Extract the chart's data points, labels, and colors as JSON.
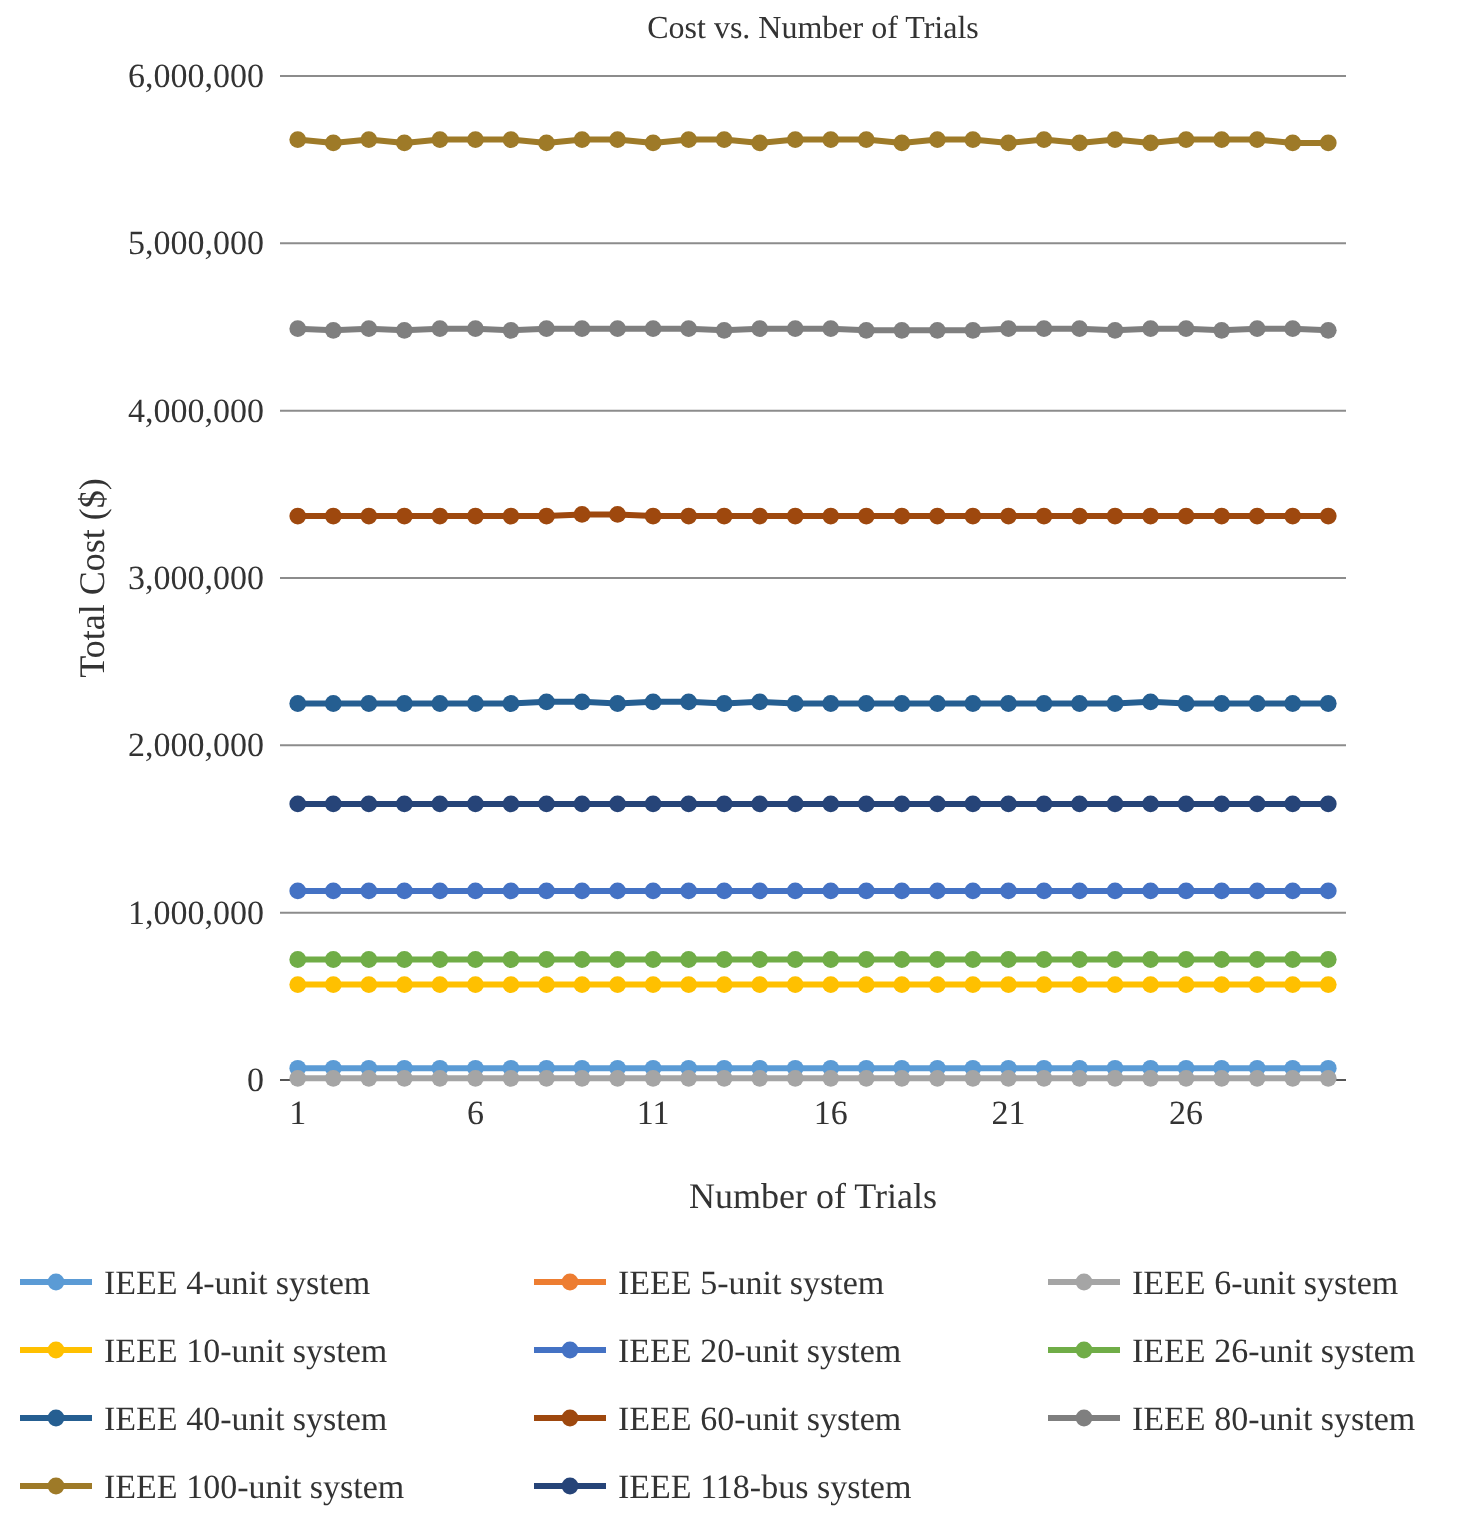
{
  "chart_data": {
    "type": "line",
    "title": "Cost vs. Number of Trials",
    "xlabel": "Number of Trials",
    "ylabel": "Total Cost ($)",
    "x": [
      1,
      2,
      3,
      4,
      5,
      6,
      7,
      8,
      9,
      10,
      11,
      12,
      13,
      14,
      15,
      16,
      17,
      18,
      19,
      20,
      21,
      22,
      23,
      24,
      25,
      26,
      27,
      28,
      29,
      30
    ],
    "xlim": [
      0.5,
      30.5
    ],
    "xticks": [
      1,
      6,
      11,
      16,
      21,
      26
    ],
    "ylim": [
      0,
      6000000
    ],
    "yticks": [
      {
        "value": 0,
        "label": "0"
      },
      {
        "value": 1000000,
        "label": "1,000,000"
      },
      {
        "value": 2000000,
        "label": "2,000,000"
      },
      {
        "value": 3000000,
        "label": "3,000,000"
      },
      {
        "value": 4000000,
        "label": "4,000,000"
      },
      {
        "value": 5000000,
        "label": "5,000,000"
      },
      {
        "value": 6000000,
        "label": "6,000,000"
      }
    ],
    "grid": "y",
    "legend": "bottom",
    "marker": "circle",
    "line_style": "solid",
    "series": [
      {
        "name": "IEEE 4-unit system",
        "color": "#5b9bd5",
        "values": [
          70000,
          70000,
          70000,
          70000,
          70000,
          70000,
          70000,
          70000,
          70000,
          70000,
          70000,
          70000,
          70000,
          70000,
          70000,
          70000,
          70000,
          70000,
          70000,
          70000,
          70000,
          70000,
          70000,
          70000,
          70000,
          70000,
          70000,
          70000,
          70000,
          70000
        ]
      },
      {
        "name": "IEEE 5-unit system",
        "color": "#ed7d31",
        "values": [
          null,
          null,
          null,
          null,
          null,
          null,
          null,
          null,
          null,
          null,
          null,
          null,
          null,
          null,
          null,
          null,
          null,
          null,
          null,
          null,
          null,
          null,
          null,
          null,
          null,
          null,
          null,
          null,
          null,
          null
        ]
      },
      {
        "name": "IEEE 6-unit system",
        "color": "#a5a5a5",
        "values": [
          10000,
          10000,
          10000,
          10000,
          10000,
          10000,
          10000,
          10000,
          10000,
          10000,
          10000,
          10000,
          10000,
          10000,
          10000,
          10000,
          10000,
          10000,
          10000,
          10000,
          10000,
          10000,
          10000,
          10000,
          10000,
          10000,
          10000,
          10000,
          10000,
          10000
        ]
      },
      {
        "name": "IEEE 10-unit system",
        "color": "#ffc000",
        "values": [
          570000,
          570000,
          570000,
          570000,
          570000,
          570000,
          570000,
          570000,
          570000,
          570000,
          570000,
          570000,
          570000,
          570000,
          570000,
          570000,
          570000,
          570000,
          570000,
          570000,
          570000,
          570000,
          570000,
          570000,
          570000,
          570000,
          570000,
          570000,
          570000,
          570000
        ]
      },
      {
        "name": "IEEE 20-unit system",
        "color": "#4472c4",
        "values": [
          1130000,
          1130000,
          1130000,
          1130000,
          1130000,
          1130000,
          1130000,
          1130000,
          1130000,
          1130000,
          1130000,
          1130000,
          1130000,
          1130000,
          1130000,
          1130000,
          1130000,
          1130000,
          1130000,
          1130000,
          1130000,
          1130000,
          1130000,
          1130000,
          1130000,
          1130000,
          1130000,
          1130000,
          1130000,
          1130000
        ]
      },
      {
        "name": "IEEE 26-unit system",
        "color": "#70ad47",
        "values": [
          720000,
          720000,
          720000,
          720000,
          720000,
          720000,
          720000,
          720000,
          720000,
          720000,
          720000,
          720000,
          720000,
          720000,
          720000,
          720000,
          720000,
          720000,
          720000,
          720000,
          720000,
          720000,
          720000,
          720000,
          720000,
          720000,
          720000,
          720000,
          720000,
          720000
        ]
      },
      {
        "name": "IEEE 40-unit system",
        "color": "#255e91",
        "values": [
          2250000,
          2250000,
          2250000,
          2250000,
          2250000,
          2250000,
          2250000,
          2260000,
          2260000,
          2250000,
          2260000,
          2260000,
          2250000,
          2260000,
          2250000,
          2250000,
          2250000,
          2250000,
          2250000,
          2250000,
          2250000,
          2250000,
          2250000,
          2250000,
          2260000,
          2250000,
          2250000,
          2250000,
          2250000,
          2250000
        ]
      },
      {
        "name": "IEEE 60-unit system",
        "color": "#9e480e",
        "values": [
          3370000,
          3370000,
          3370000,
          3370000,
          3370000,
          3370000,
          3370000,
          3370000,
          3380000,
          3380000,
          3370000,
          3370000,
          3370000,
          3370000,
          3370000,
          3370000,
          3370000,
          3370000,
          3370000,
          3370000,
          3370000,
          3370000,
          3370000,
          3370000,
          3370000,
          3370000,
          3370000,
          3370000,
          3370000,
          3370000
        ]
      },
      {
        "name": "IEEE 80-unit system",
        "color": "#7f7f7f",
        "values": [
          4490000,
          4480000,
          4490000,
          4480000,
          4490000,
          4490000,
          4480000,
          4490000,
          4490000,
          4490000,
          4490000,
          4490000,
          4480000,
          4490000,
          4490000,
          4490000,
          4480000,
          4480000,
          4480000,
          4480000,
          4490000,
          4490000,
          4490000,
          4480000,
          4490000,
          4490000,
          4480000,
          4490000,
          4490000,
          4480000
        ]
      },
      {
        "name": "IEEE 100-unit system",
        "color": "#9e7a28",
        "values": [
          5620000,
          5600000,
          5620000,
          5600000,
          5620000,
          5620000,
          5620000,
          5600000,
          5620000,
          5620000,
          5600000,
          5620000,
          5620000,
          5600000,
          5620000,
          5620000,
          5620000,
          5600000,
          5620000,
          5620000,
          5600000,
          5620000,
          5600000,
          5620000,
          5600000,
          5620000,
          5620000,
          5620000,
          5600000,
          5600000
        ]
      },
      {
        "name": "IEEE 118-bus system",
        "color": "#264478",
        "values": [
          1650000,
          1650000,
          1650000,
          1650000,
          1650000,
          1650000,
          1650000,
          1650000,
          1650000,
          1650000,
          1650000,
          1650000,
          1650000,
          1650000,
          1650000,
          1650000,
          1650000,
          1650000,
          1650000,
          1650000,
          1650000,
          1650000,
          1650000,
          1650000,
          1650000,
          1650000,
          1650000,
          1650000,
          1650000,
          1650000
        ]
      }
    ]
  }
}
